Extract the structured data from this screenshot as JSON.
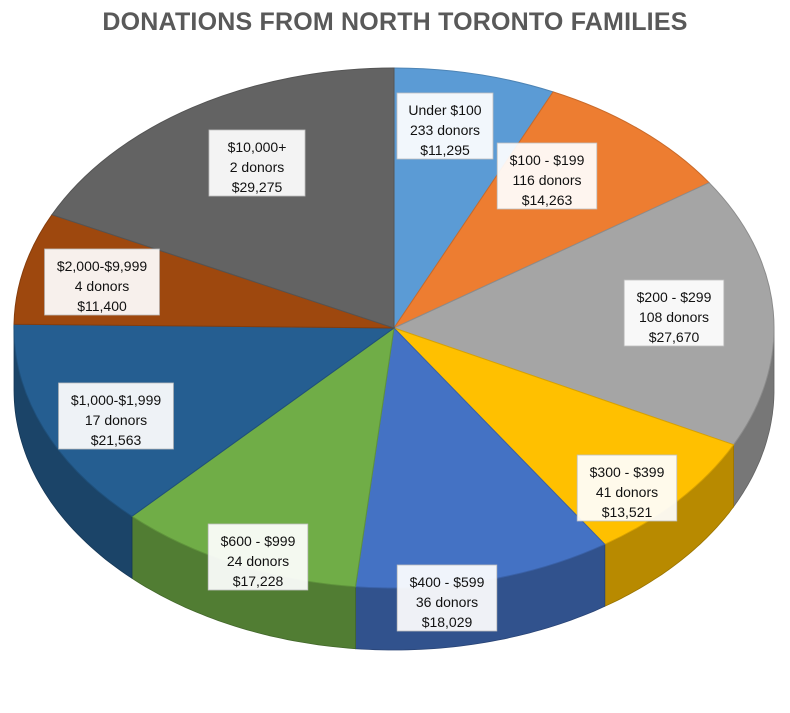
{
  "chart_data": {
    "type": "pie",
    "title": "DONATIONS FROM NORTH TORONTO FAMILIES",
    "slices": [
      {
        "range": "Under $100",
        "donors": "233 donors",
        "amount": "$11,295",
        "value": 11295,
        "color": "#5b9bd5"
      },
      {
        "range": "$100 - $199",
        "donors": "116 donors",
        "amount": "$14,263",
        "value": 14263,
        "color": "#ed7d31"
      },
      {
        "range": "$200 - $299",
        "donors": "108 donors",
        "amount": "$27,670",
        "value": 27670,
        "color": "#a5a5a5"
      },
      {
        "range": "$300 - $399",
        "donors": "41 donors",
        "amount": "$13,521",
        "value": 13521,
        "color": "#ffc000"
      },
      {
        "range": "$400 - $599",
        "donors": "36 donors",
        "amount": "$18,029",
        "value": 18029,
        "color": "#4472c4"
      },
      {
        "range": "$600 - $999",
        "donors": "24 donors",
        "amount": "$17,228",
        "value": 17228,
        "color": "#70ad47"
      },
      {
        "range": "$1,000-$1,999",
        "donors": "17 donors",
        "amount": "$21,563",
        "value": 21563,
        "color": "#255e91"
      },
      {
        "range": "$2,000-$9,999",
        "donors": "4 donors",
        "amount": "$11,400",
        "value": 11400,
        "color": "#9e480e"
      },
      {
        "range": "$10,000+",
        "donors": "2 donors",
        "amount": "$29,275",
        "value": 29275,
        "color": "#636363"
      }
    ]
  }
}
